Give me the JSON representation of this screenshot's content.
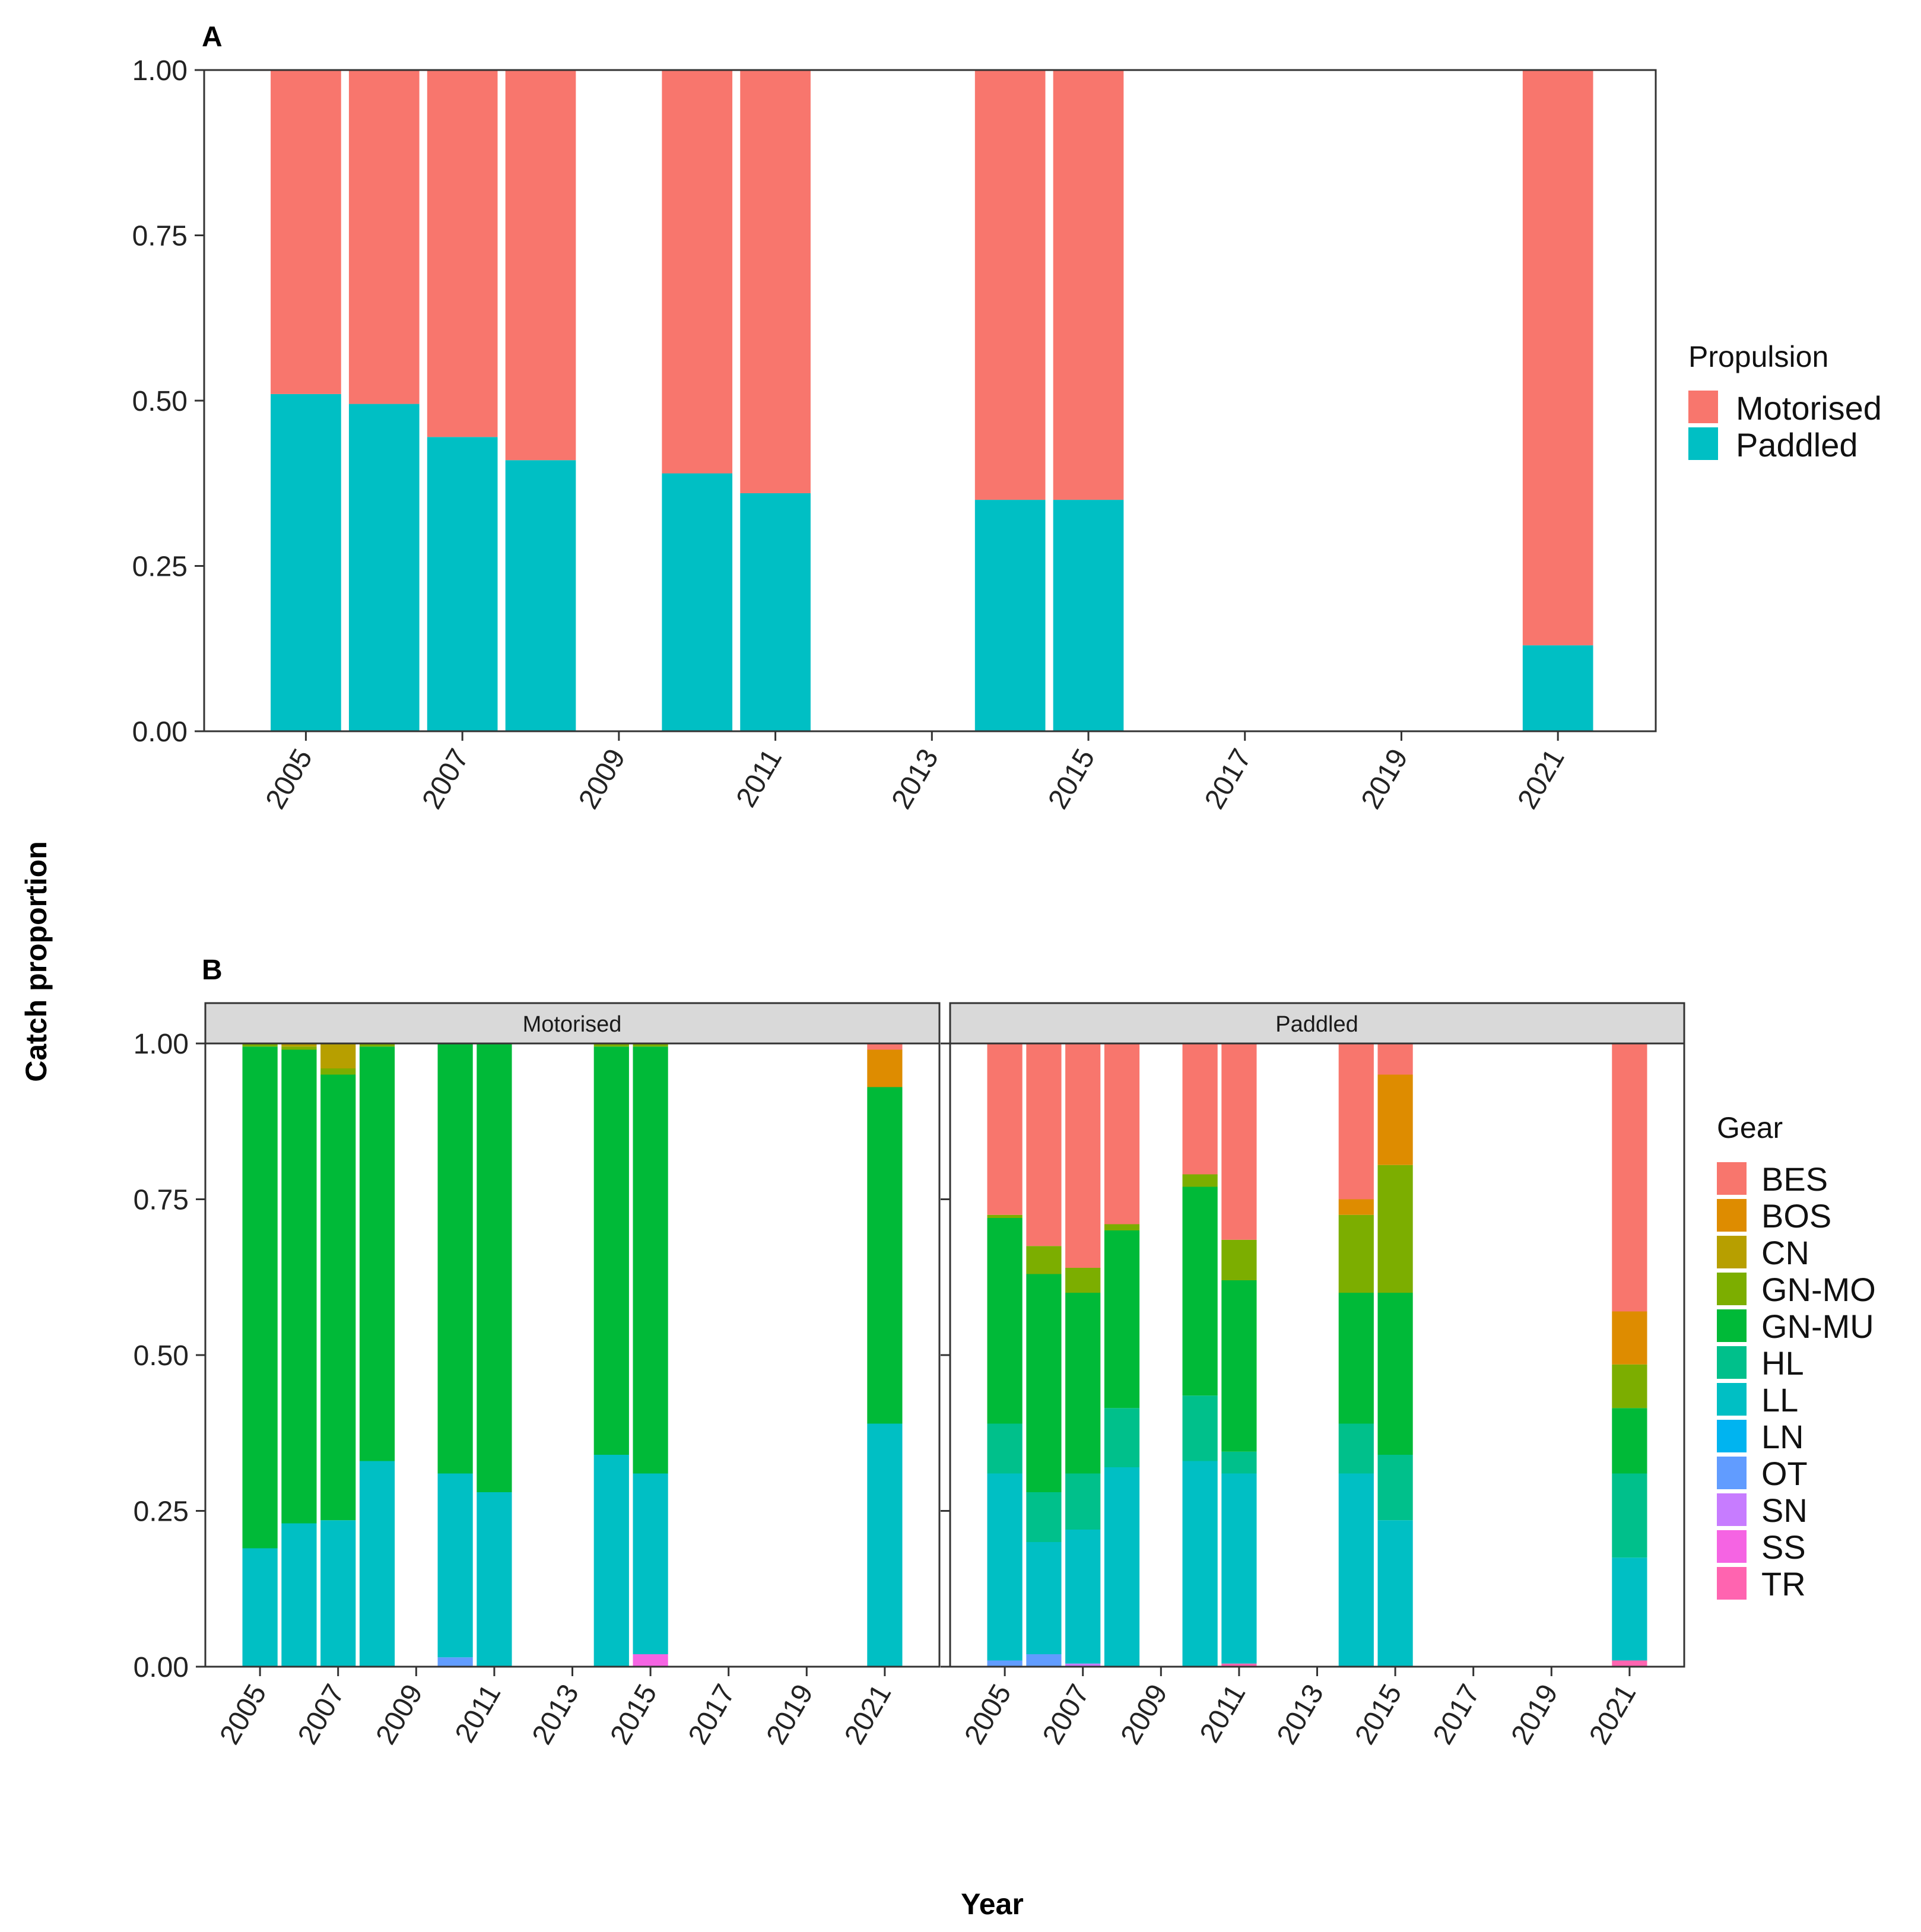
{
  "figure": {
    "y_axis_title": "Catch proportion",
    "x_axis_title": "Year"
  },
  "colors": {
    "BES": "#F8766D",
    "BOS": "#DE8C00",
    "CN": "#B79F00",
    "GN-MO": "#7CAE00",
    "GN-MU": "#00BA38",
    "HL": "#00C08B",
    "LL": "#00BFC4",
    "LN": "#00B4F0",
    "OT": "#619CFF",
    "SN": "#C77CFF",
    "SS": "#F564E3",
    "TR": "#FF64B0",
    "Motorised": "#F8766D",
    "Paddled": "#00BFC4"
  },
  "chart_data": [
    {
      "type": "bar",
      "stacked": true,
      "panel_tag": "A",
      "x": [
        2005,
        2006,
        2007,
        2008,
        2010,
        2011,
        2014,
        2015,
        2021
      ],
      "x_ticks": [
        "2005",
        "2007",
        "2009",
        "2011",
        "2013",
        "2015",
        "2017",
        "2019",
        "2021"
      ],
      "xlim": [
        2003.7,
        2022.25
      ],
      "ylim": [
        0,
        1
      ],
      "y_ticks": [
        "0.00",
        "0.25",
        "0.50",
        "0.75",
        "1.00"
      ],
      "xlabel": "Year",
      "ylabel": "Catch proportion",
      "legend_title": "Propulsion",
      "series": [
        {
          "name": "Paddled",
          "values": [
            0.51,
            0.495,
            0.445,
            0.41,
            0.39,
            0.36,
            0.35,
            0.35,
            0.13
          ]
        },
        {
          "name": "Motorised",
          "values": [
            0.49,
            0.505,
            0.555,
            0.59,
            0.61,
            0.64,
            0.65,
            0.65,
            0.87
          ]
        }
      ]
    },
    {
      "type": "bar",
      "stacked": true,
      "panel_tag": "B",
      "x_ticks": [
        "2005",
        "2007",
        "2009",
        "2011",
        "2013",
        "2015",
        "2017",
        "2019",
        "2021"
      ],
      "ylim": [
        0,
        1
      ],
      "y_ticks": [
        "0.00",
        "0.25",
        "0.50",
        "0.75",
        "1.00"
      ],
      "legend_title": "Gear",
      "legend_order": [
        "BES",
        "BOS",
        "CN",
        "GN-MO",
        "GN-MU",
        "HL",
        "LL",
        "LN",
        "OT",
        "SN",
        "SS",
        "TR"
      ],
      "facets": [
        {
          "label": "Motorised",
          "x": [
            2005,
            2006,
            2007,
            2008,
            2010,
            2011,
            2014,
            2015,
            2021
          ],
          "bars": [
            [
              {
                "gear": "LL",
                "v": 0.19
              },
              {
                "gear": "GN-MU",
                "v": 0.805
              },
              {
                "gear": "GN-MO",
                "v": 0.005
              }
            ],
            [
              {
                "gear": "LL",
                "v": 0.23
              },
              {
                "gear": "GN-MU",
                "v": 0.76
              },
              {
                "gear": "GN-MO",
                "v": 0.005
              },
              {
                "gear": "CN",
                "v": 0.005
              }
            ],
            [
              {
                "gear": "LL",
                "v": 0.235
              },
              {
                "gear": "GN-MU",
                "v": 0.715
              },
              {
                "gear": "GN-MO",
                "v": 0.01
              },
              {
                "gear": "CN",
                "v": 0.04
              }
            ],
            [
              {
                "gear": "LL",
                "v": 0.33
              },
              {
                "gear": "GN-MU",
                "v": 0.665
              },
              {
                "gear": "GN-MO",
                "v": 0.005
              }
            ],
            [
              {
                "gear": "OT",
                "v": 0.015
              },
              {
                "gear": "LL",
                "v": 0.295
              },
              {
                "gear": "GN-MU",
                "v": 0.69
              }
            ],
            [
              {
                "gear": "LL",
                "v": 0.28
              },
              {
                "gear": "GN-MU",
                "v": 0.72
              }
            ],
            [
              {
                "gear": "LL",
                "v": 0.34
              },
              {
                "gear": "GN-MU",
                "v": 0.655
              },
              {
                "gear": "GN-MO",
                "v": 0.005
              }
            ],
            [
              {
                "gear": "SS",
                "v": 0.02
              },
              {
                "gear": "LL",
                "v": 0.29
              },
              {
                "gear": "GN-MU",
                "v": 0.685
              },
              {
                "gear": "GN-MO",
                "v": 0.005
              }
            ],
            [
              {
                "gear": "LL",
                "v": 0.39
              },
              {
                "gear": "GN-MU",
                "v": 0.54
              },
              {
                "gear": "BOS",
                "v": 0.06
              },
              {
                "gear": "BES",
                "v": 0.01
              }
            ]
          ]
        },
        {
          "label": "Paddled",
          "x": [
            2005,
            2006,
            2007,
            2008,
            2010,
            2011,
            2014,
            2015,
            2021
          ],
          "bars": [
            [
              {
                "gear": "OT",
                "v": 0.01
              },
              {
                "gear": "LL",
                "v": 0.3
              },
              {
                "gear": "HL",
                "v": 0.08
              },
              {
                "gear": "GN-MU",
                "v": 0.33
              },
              {
                "gear": "GN-MO",
                "v": 0.005
              },
              {
                "gear": "BES",
                "v": 0.275
              }
            ],
            [
              {
                "gear": "OT",
                "v": 0.02
              },
              {
                "gear": "LL",
                "v": 0.18
              },
              {
                "gear": "HL",
                "v": 0.08
              },
              {
                "gear": "GN-MU",
                "v": 0.35
              },
              {
                "gear": "GN-MO",
                "v": 0.045
              },
              {
                "gear": "BES",
                "v": 0.325
              }
            ],
            [
              {
                "gear": "SN",
                "v": 0.005
              },
              {
                "gear": "LL",
                "v": 0.215
              },
              {
                "gear": "HL",
                "v": 0.09
              },
              {
                "gear": "GN-MU",
                "v": 0.29
              },
              {
                "gear": "GN-MO",
                "v": 0.04
              },
              {
                "gear": "BES",
                "v": 0.36
              }
            ],
            [
              {
                "gear": "LL",
                "v": 0.32
              },
              {
                "gear": "HL",
                "v": 0.095
              },
              {
                "gear": "GN-MU",
                "v": 0.285
              },
              {
                "gear": "GN-MO",
                "v": 0.01
              },
              {
                "gear": "BES",
                "v": 0.29
              }
            ],
            [
              {
                "gear": "LL",
                "v": 0.33
              },
              {
                "gear": "HL",
                "v": 0.105
              },
              {
                "gear": "GN-MU",
                "v": 0.335
              },
              {
                "gear": "GN-MO",
                "v": 0.02
              },
              {
                "gear": "BES",
                "v": 0.21
              }
            ],
            [
              {
                "gear": "TR",
                "v": 0.005
              },
              {
                "gear": "LL",
                "v": 0.305
              },
              {
                "gear": "HL",
                "v": 0.035
              },
              {
                "gear": "GN-MU",
                "v": 0.275
              },
              {
                "gear": "GN-MO",
                "v": 0.065
              },
              {
                "gear": "BES",
                "v": 0.315
              }
            ],
            [
              {
                "gear": "LL",
                "v": 0.31
              },
              {
                "gear": "HL",
                "v": 0.08
              },
              {
                "gear": "GN-MU",
                "v": 0.21
              },
              {
                "gear": "GN-MO",
                "v": 0.125
              },
              {
                "gear": "BOS",
                "v": 0.025
              },
              {
                "gear": "BES",
                "v": 0.25
              }
            ],
            [
              {
                "gear": "LL",
                "v": 0.235
              },
              {
                "gear": "HL",
                "v": 0.105
              },
              {
                "gear": "GN-MU",
                "v": 0.26
              },
              {
                "gear": "GN-MO",
                "v": 0.205
              },
              {
                "gear": "BOS",
                "v": 0.145
              },
              {
                "gear": "BES",
                "v": 0.05
              }
            ],
            [
              {
                "gear": "TR",
                "v": 0.01
              },
              {
                "gear": "LL",
                "v": 0.165
              },
              {
                "gear": "HL",
                "v": 0.135
              },
              {
                "gear": "GN-MU",
                "v": 0.105
              },
              {
                "gear": "GN-MO",
                "v": 0.07
              },
              {
                "gear": "BOS",
                "v": 0.085
              },
              {
                "gear": "BES",
                "v": 0.43
              }
            ]
          ]
        }
      ]
    }
  ]
}
